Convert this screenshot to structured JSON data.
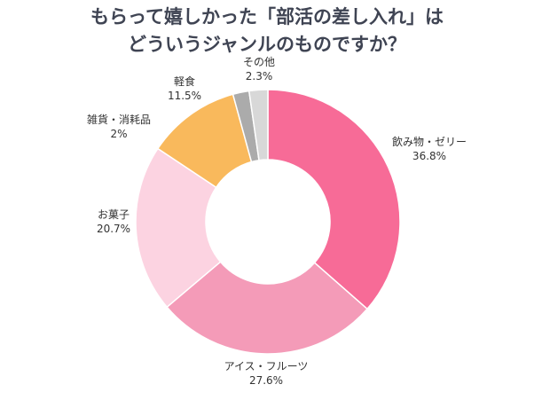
{
  "chart_data": {
    "type": "pie",
    "donut": true,
    "title_lines": [
      "もらって嬉しかった「部活の差し入れ」は",
      "どういうジャンルのものですか？"
    ],
    "slices": [
      {
        "label": "飲み物・ゼリー",
        "value": 36.8,
        "value_label": "36.8%",
        "color": "#f76b97"
      },
      {
        "label": "アイス・フルーツ",
        "value": 27.6,
        "value_label": "27.6%",
        "color": "#f49bb8"
      },
      {
        "label": "お菓子",
        "value": 20.7,
        "value_label": "20.7%",
        "color": "#fcd3e1"
      },
      {
        "label": "軽食",
        "value": 11.5,
        "value_label": "11.5%",
        "color": "#f9b95c"
      },
      {
        "label": "雑貨・消耗品",
        "value": 2,
        "value_label": "2%",
        "color": "#ababab"
      },
      {
        "label": "その他",
        "value": 2.3,
        "value_label": "2.3%",
        "color": "#d8d8d8"
      }
    ],
    "start": "top",
    "direction": "clockwise"
  }
}
